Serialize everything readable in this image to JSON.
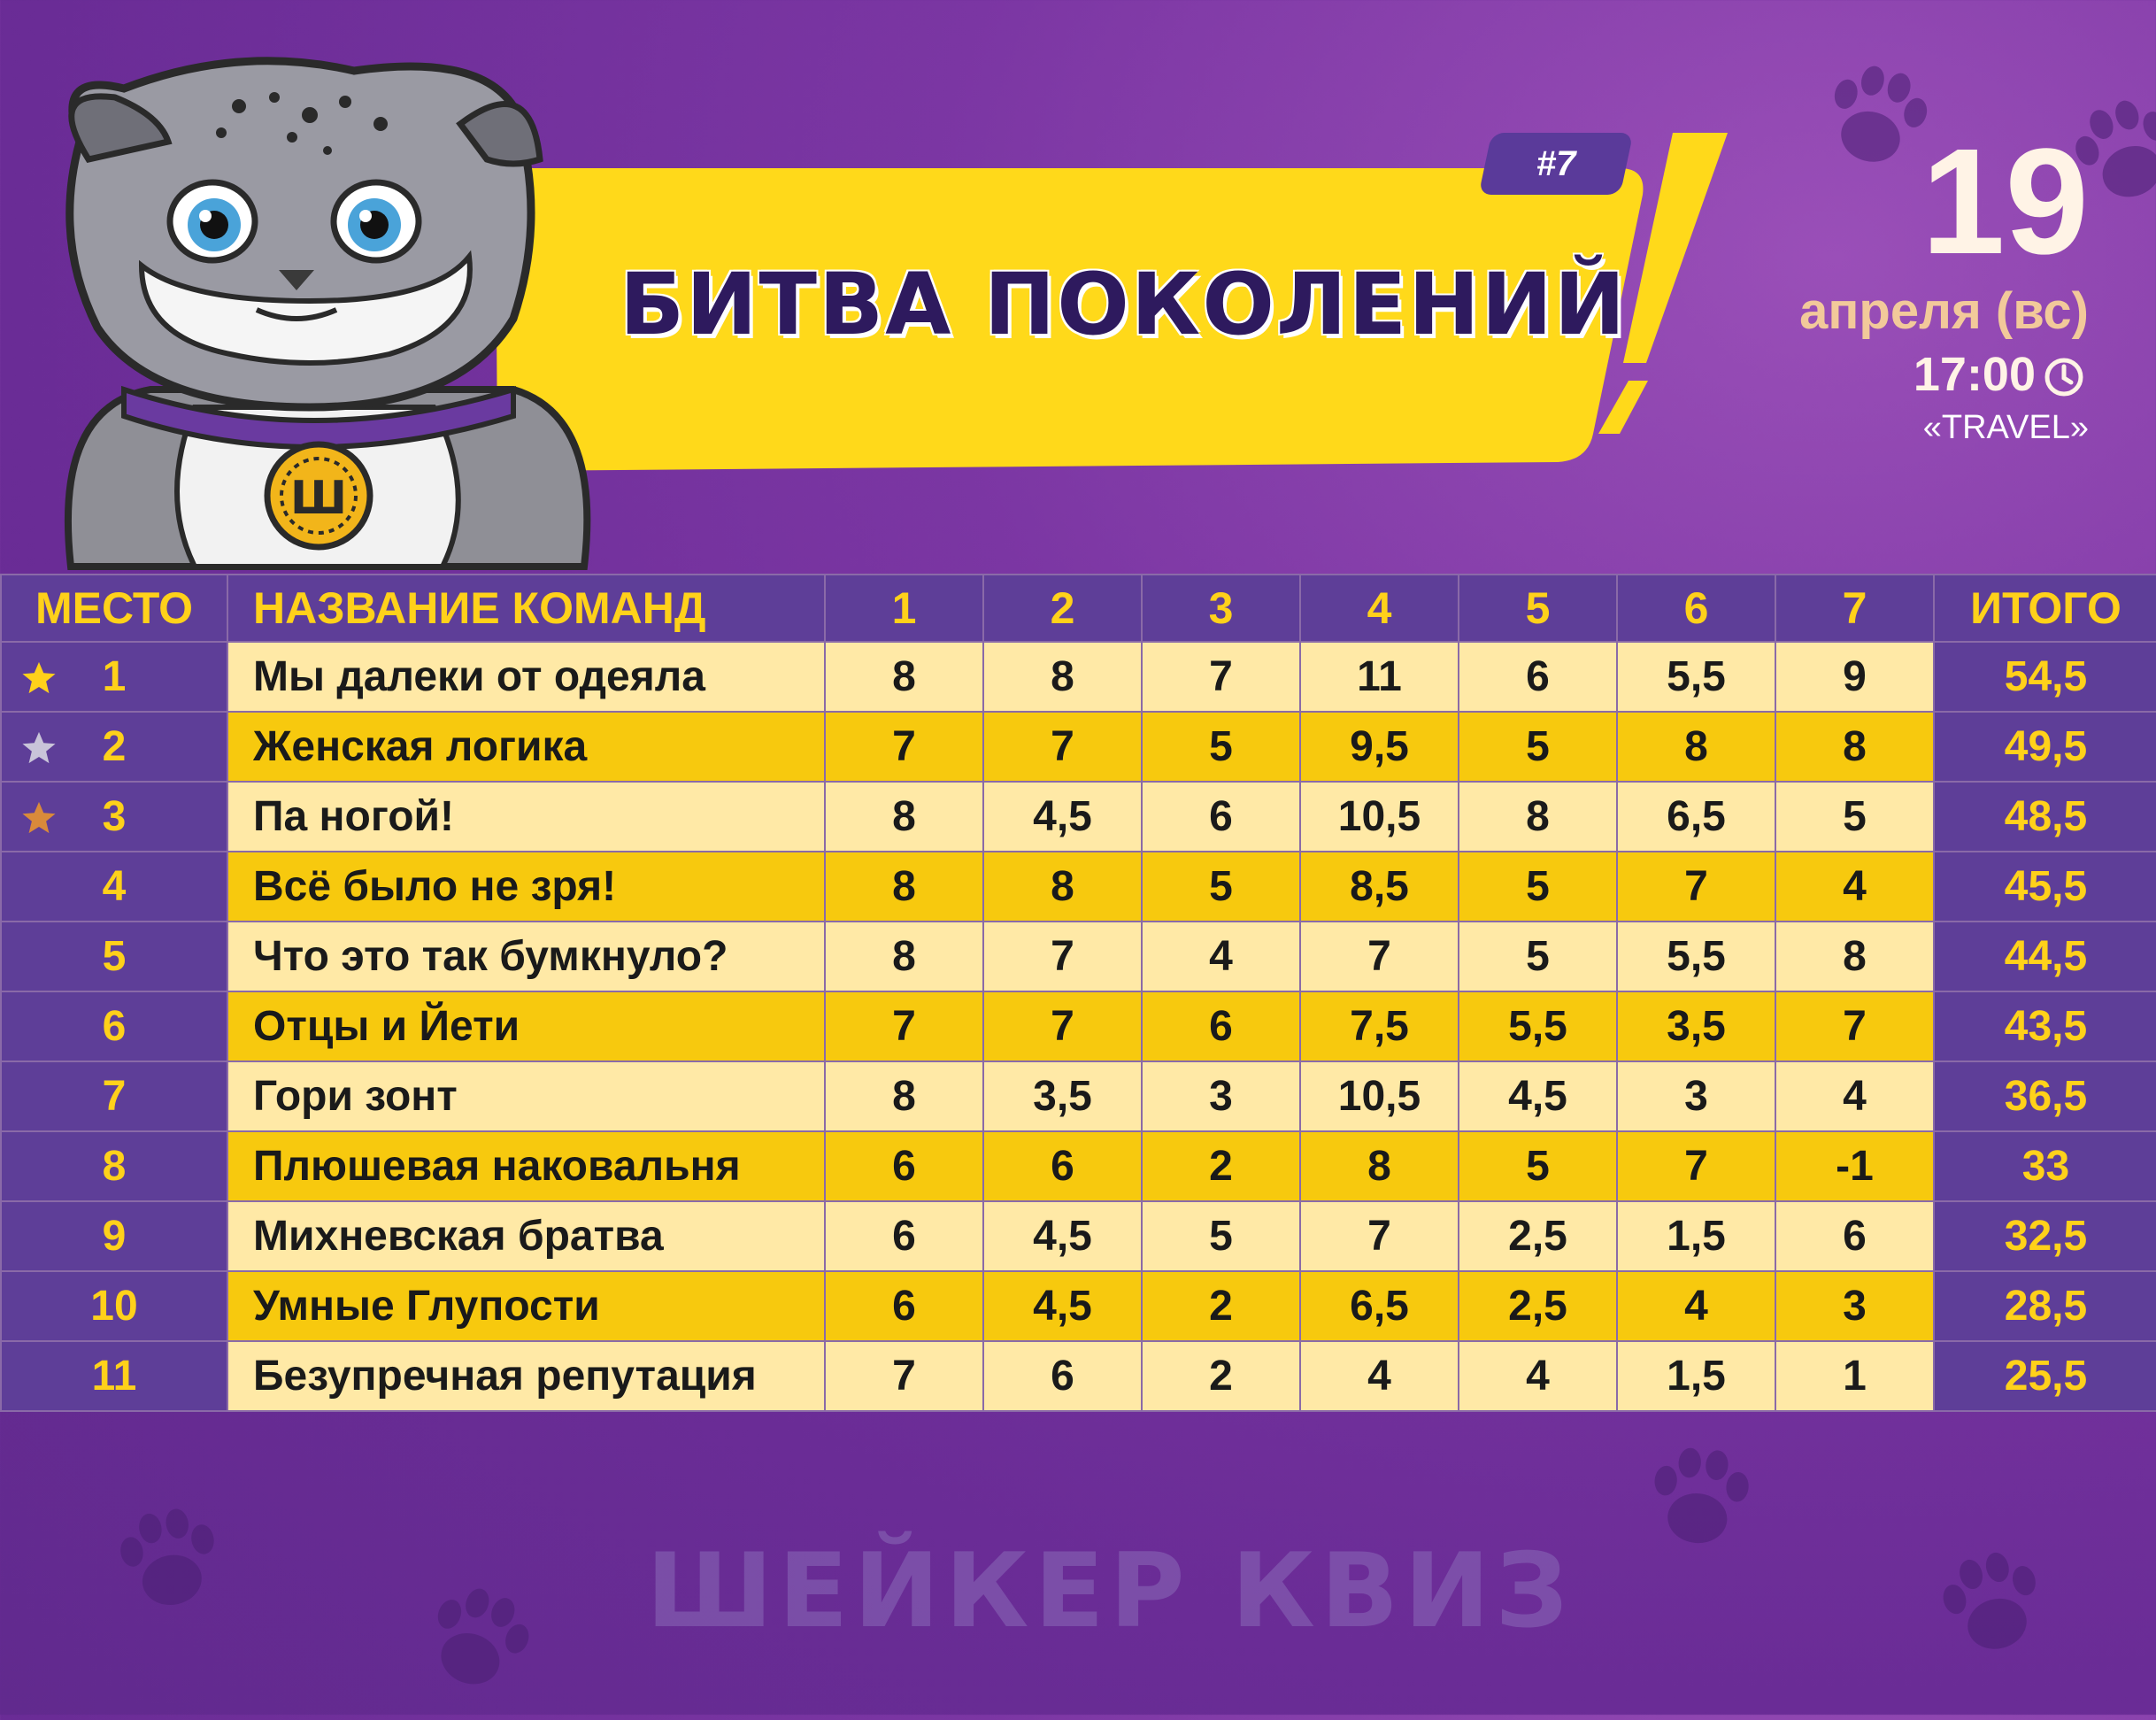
{
  "episode": "#7",
  "title": "БИТВА ПОКОЛЕНИЙ",
  "date": {
    "day": "19",
    "month": "апреля (вс)",
    "time": "17:00",
    "venue": "«TRAVEL»"
  },
  "mascot": {
    "medallion_letter": "Ш"
  },
  "table": {
    "headers": [
      "МЕСТО",
      "НАЗВАНИЕ КОМАНД",
      "1",
      "2",
      "3",
      "4",
      "5",
      "6",
      "7",
      "ИТОГО"
    ],
    "rows": [
      {
        "place": "1",
        "medal": "gold",
        "name": "Мы далеки от одеяла",
        "scores": [
          "8",
          "8",
          "7",
          "11",
          "6",
          "5,5",
          "9"
        ],
        "total": "54,5"
      },
      {
        "place": "2",
        "medal": "silver",
        "name": "Женская логика",
        "scores": [
          "7",
          "7",
          "5",
          "9,5",
          "5",
          "8",
          "8"
        ],
        "total": "49,5"
      },
      {
        "place": "3",
        "medal": "bronze",
        "name": "Па ногой!",
        "scores": [
          "8",
          "4,5",
          "6",
          "10,5",
          "8",
          "6,5",
          "5"
        ],
        "total": "48,5"
      },
      {
        "place": "4",
        "medal": "",
        "name": "Всё было не зря!",
        "scores": [
          "8",
          "8",
          "5",
          "8,5",
          "5",
          "7",
          "4"
        ],
        "total": "45,5"
      },
      {
        "place": "5",
        "medal": "",
        "name": "Что это так бумкнуло?",
        "scores": [
          "8",
          "7",
          "4",
          "7",
          "5",
          "5,5",
          "8"
        ],
        "total": "44,5"
      },
      {
        "place": "6",
        "medal": "",
        "name": "Отцы и Йети",
        "scores": [
          "7",
          "7",
          "6",
          "7,5",
          "5,5",
          "3,5",
          "7"
        ],
        "total": "43,5"
      },
      {
        "place": "7",
        "medal": "",
        "name": "Гори зонт",
        "scores": [
          "8",
          "3,5",
          "3",
          "10,5",
          "4,5",
          "3",
          "4"
        ],
        "total": "36,5"
      },
      {
        "place": "8",
        "medal": "",
        "name": "Плюшевая наковальня",
        "scores": [
          "6",
          "6",
          "2",
          "8",
          "5",
          "7",
          "-1"
        ],
        "total": "33"
      },
      {
        "place": "9",
        "medal": "",
        "name": "Михневская братва",
        "scores": [
          "6",
          "4,5",
          "5",
          "7",
          "2,5",
          "1,5",
          "6"
        ],
        "total": "32,5"
      },
      {
        "place": "10",
        "medal": "",
        "name": "Умные Глупости",
        "scores": [
          "6",
          "4,5",
          "2",
          "6,5",
          "2,5",
          "4",
          "3"
        ],
        "total": "28,5"
      },
      {
        "place": "11",
        "medal": "",
        "name": "Безупречная репутация",
        "scores": [
          "7",
          "6",
          "2",
          "4",
          "4",
          "1,5",
          "1"
        ],
        "total": "25,5"
      }
    ]
  },
  "brand": "ШЕЙКЕР КВИЗ",
  "colors": {
    "background": "#6a2c96",
    "banner": "#ffd91a",
    "header_text": "#ffd11a",
    "row_light": "#ffe9a6",
    "row_dark": "#f7c90e",
    "star_gold": "#ffd11a",
    "star_silver": "#c9c4d9",
    "star_bronze": "#d98a3a"
  }
}
